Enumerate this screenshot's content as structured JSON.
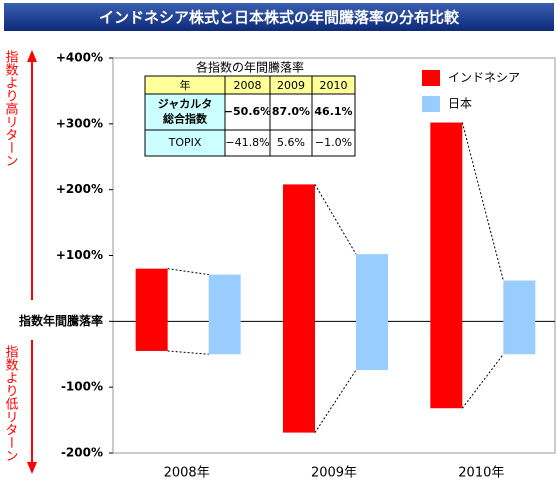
{
  "chart_data": {
    "type": "range-bar",
    "title": "インドネシア株式と日本株式の年間騰落率の分布比較",
    "categories": [
      "2008年",
      "2009年",
      "2010年"
    ],
    "series": [
      {
        "name": "インドネシア",
        "color": "#ff0000",
        "low": [
          -45,
          -169,
          -132
        ],
        "high": [
          80,
          208,
          302
        ]
      },
      {
        "name": "日本",
        "color": "#99ccff",
        "low": [
          -50,
          -74,
          -50
        ],
        "high": [
          71,
          102,
          62
        ]
      }
    ],
    "ylim": [
      -200,
      400
    ],
    "yticks": [
      {
        "value": -200,
        "label": "-200%"
      },
      {
        "value": -100,
        "label": "-100%"
      },
      {
        "value": 0,
        "label": "指数年間騰落率"
      },
      {
        "value": 100,
        "label": "+100%"
      },
      {
        "value": 200,
        "label": "+200%"
      },
      {
        "value": 300,
        "label": "+300%"
      },
      {
        "value": 400,
        "label": "+400%"
      }
    ],
    "annotations": {
      "upper": "指数より高リターン",
      "lower": "指数より低リターン"
    },
    "table": {
      "title": "各指数の年間騰落率",
      "header": [
        "年",
        "2008",
        "2009",
        "2010"
      ],
      "rows": [
        {
          "name": [
            "ジャカルタ",
            "総合指数"
          ],
          "values": [
            "−50.6%",
            "87.0%",
            "46.1%"
          ]
        },
        {
          "name": [
            "TOPIX"
          ],
          "values": [
            "−41.8%",
            "5.6%",
            "−1.0%"
          ]
        }
      ]
    }
  }
}
